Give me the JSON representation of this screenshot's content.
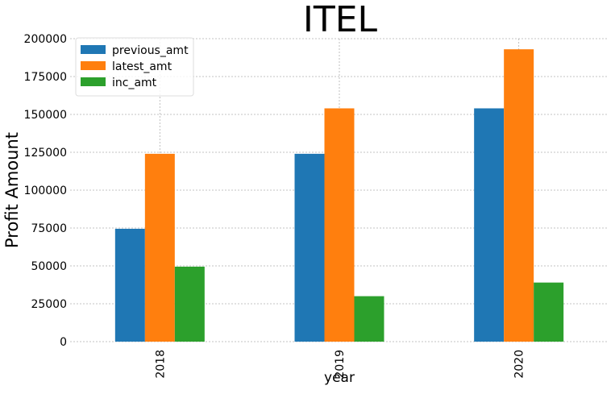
{
  "chart_data": {
    "type": "bar",
    "title": "ITEL",
    "xlabel": "year",
    "ylabel": "Profit Amount",
    "categories": [
      "2018",
      "2019",
      "2020"
    ],
    "series": [
      {
        "name": "previous_amt",
        "color": "#1f77b4",
        "values": [
          74500,
          124000,
          154000
        ]
      },
      {
        "name": "latest_amt",
        "color": "#ff7f0e",
        "values": [
          124000,
          154000,
          193000
        ]
      },
      {
        "name": "inc_amt",
        "color": "#2ca02c",
        "values": [
          49500,
          30000,
          39000
        ]
      }
    ],
    "ylim": [
      0,
      200000
    ],
    "yticks": [
      "0",
      "25000",
      "50000",
      "75000",
      "100000",
      "125000",
      "150000",
      "175000",
      "200000"
    ],
    "grid": true,
    "legend_position": "top-left"
  }
}
